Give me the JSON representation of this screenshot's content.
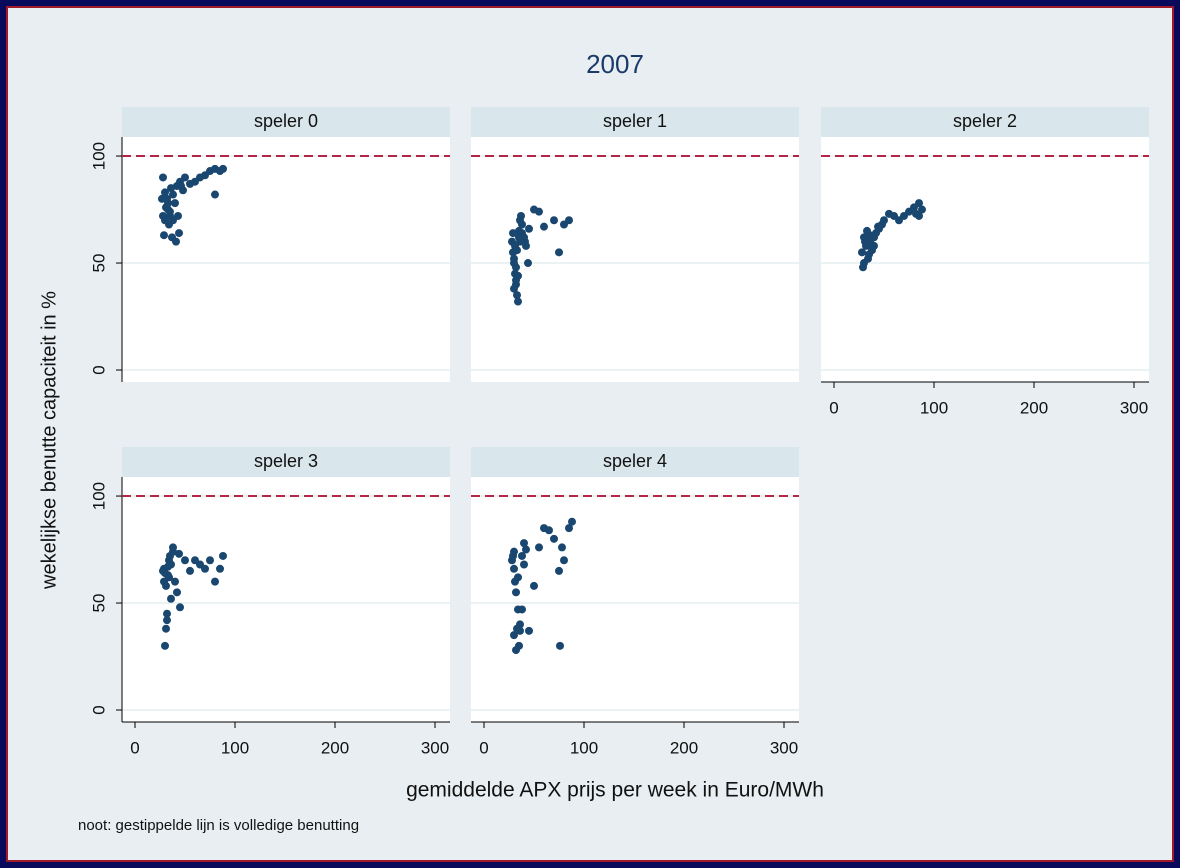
{
  "title": "2007",
  "x_label": "gemiddelde APX prijs per week in Euro/MWh",
  "y_label": "wekelijkse benutte capaciteit in %",
  "note": "noot: gestippelde lijn is volledige benutting",
  "chart_data": [
    {
      "type": "scatter",
      "title": "speler 0",
      "color": "#1a476f",
      "reference_line": {
        "value": 100,
        "color": "#b22746"
      },
      "xlim": [
        -13,
        315
      ],
      "ylim": [
        -5.6,
        108.9
      ],
      "yticks": [
        0,
        50,
        100
      ],
      "y_axis": true,
      "x_axis": false,
      "x": [
        28,
        30,
        32,
        33,
        35,
        36,
        38,
        40,
        42,
        45,
        48,
        50,
        55,
        60,
        65,
        70,
        75,
        80,
        85,
        88,
        30,
        34,
        37,
        41,
        44,
        28,
        31,
        35,
        38,
        43,
        46,
        80,
        27,
        29,
        33
      ],
      "values": [
        90,
        83,
        80,
        75,
        72,
        85,
        82,
        78,
        86,
        88,
        84,
        90,
        87,
        88,
        90,
        91,
        93,
        94,
        93,
        94,
        70,
        68,
        62,
        60,
        64,
        72,
        76,
        74,
        70,
        72,
        86,
        82,
        80,
        63,
        78
      ]
    },
    {
      "type": "scatter",
      "title": "speler 1",
      "color": "#1a476f",
      "reference_line": {
        "value": 100,
        "color": "#b22746"
      },
      "xlim": [
        -13,
        315
      ],
      "ylim": [
        -5.6,
        108.9
      ],
      "yticks": [
        0,
        50,
        100
      ],
      "y_axis": false,
      "x_axis": false,
      "x": [
        28,
        29,
        30,
        31,
        32,
        33,
        34,
        35,
        36,
        37,
        38,
        40,
        42,
        45,
        50,
        55,
        60,
        70,
        75,
        80,
        85,
        30,
        32,
        34,
        36,
        29,
        31,
        33,
        35,
        38,
        41,
        44,
        30,
        32
      ],
      "values": [
        60,
        55,
        50,
        45,
        40,
        35,
        32,
        65,
        70,
        72,
        68,
        62,
        58,
        66,
        75,
        74,
        67,
        70,
        55,
        68,
        70,
        52,
        48,
        44,
        60,
        64,
        58,
        56,
        62,
        64,
        60,
        50,
        38,
        42
      ]
    },
    {
      "type": "scatter",
      "title": "speler 2",
      "color": "#1a476f",
      "reference_line": {
        "value": 100,
        "color": "#b22746"
      },
      "xlim": [
        -13,
        315
      ],
      "ylim": [
        -5.6,
        108.9
      ],
      "yticks": [
        0,
        50,
        100
      ],
      "xticks": [
        0,
        100,
        200,
        300
      ],
      "y_axis": false,
      "x_axis": true,
      "x": [
        28,
        30,
        32,
        34,
        36,
        38,
        40,
        42,
        45,
        48,
        50,
        55,
        60,
        65,
        70,
        75,
        80,
        85,
        88,
        30,
        33,
        35,
        38,
        29,
        31,
        36,
        40,
        44,
        85,
        82
      ],
      "values": [
        55,
        50,
        58,
        52,
        60,
        56,
        62,
        64,
        66,
        68,
        70,
        73,
        72,
        70,
        72,
        74,
        76,
        78,
        75,
        62,
        65,
        54,
        57,
        48,
        60,
        63,
        58,
        67,
        72,
        73
      ]
    },
    {
      "type": "scatter",
      "title": "speler 3",
      "color": "#1a476f",
      "reference_line": {
        "value": 100,
        "color": "#b22746"
      },
      "xlim": [
        -13,
        315
      ],
      "ylim": [
        -5.6,
        108.9
      ],
      "yticks": [
        0,
        50,
        100
      ],
      "xticks": [
        0,
        100,
        200,
        300
      ],
      "y_axis": true,
      "x_axis": true,
      "x": [
        28,
        29,
        30,
        31,
        32,
        33,
        34,
        35,
        36,
        38,
        40,
        42,
        45,
        50,
        55,
        60,
        65,
        70,
        75,
        80,
        85,
        88,
        30,
        31,
        32,
        34,
        36,
        38,
        44,
        29,
        33
      ],
      "values": [
        65,
        60,
        30,
        38,
        42,
        63,
        70,
        72,
        68,
        76,
        60,
        55,
        48,
        70,
        65,
        70,
        68,
        66,
        70,
        60,
        66,
        72,
        64,
        58,
        45,
        62,
        52,
        74,
        73,
        66,
        67
      ]
    },
    {
      "type": "scatter",
      "title": "speler 4",
      "color": "#1a476f",
      "reference_line": {
        "value": 100,
        "color": "#b22746"
      },
      "xlim": [
        -13,
        315
      ],
      "ylim": [
        -5.6,
        108.9
      ],
      "yticks": [
        0,
        50,
        100
      ],
      "xticks": [
        0,
        100,
        200,
        300
      ],
      "y_axis": false,
      "x_axis": true,
      "x": [
        28,
        29,
        30,
        31,
        32,
        33,
        35,
        36,
        38,
        40,
        42,
        45,
        50,
        55,
        60,
        65,
        70,
        75,
        80,
        85,
        88,
        30,
        32,
        34,
        36,
        38,
        40,
        34,
        30,
        76,
        78
      ],
      "values": [
        70,
        72,
        66,
        60,
        55,
        38,
        30,
        40,
        47,
        78,
        75,
        37,
        58,
        76,
        85,
        84,
        80,
        65,
        70,
        85,
        88,
        35,
        28,
        47,
        37,
        72,
        68,
        62,
        74,
        30,
        76
      ]
    }
  ]
}
